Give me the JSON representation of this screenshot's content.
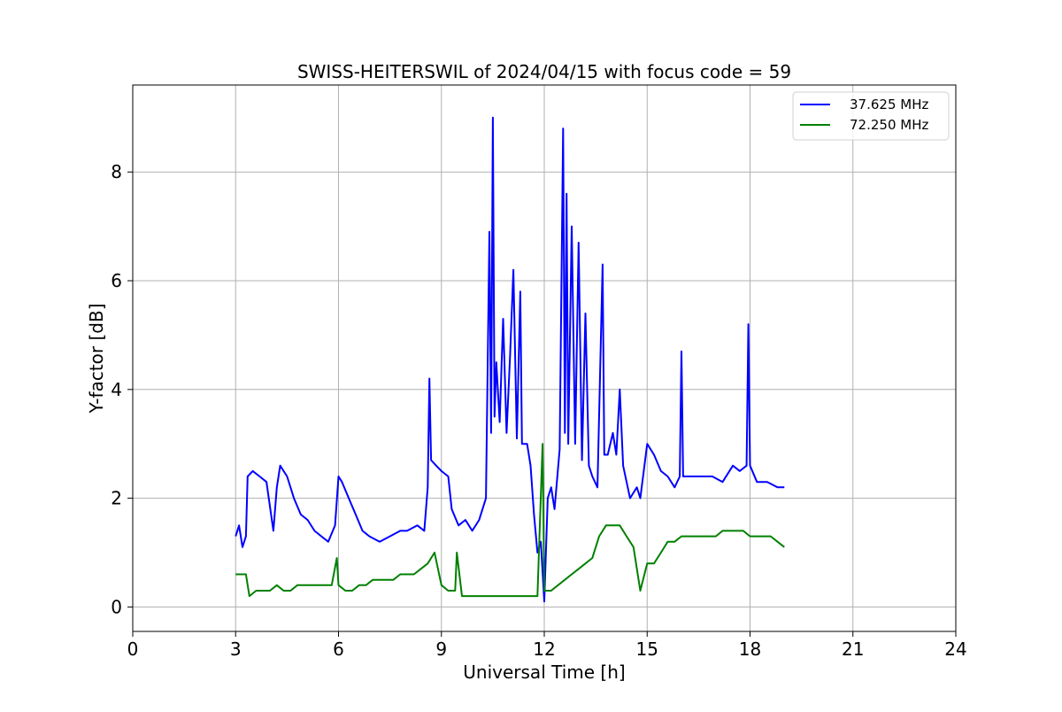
{
  "chart_data": {
    "type": "line",
    "title": "SWISS-HEITERSWIL of 2024/04/15 with focus code = 59",
    "xlabel": "Universal Time [h]",
    "ylabel": "Y-factor [dB]",
    "xlim": [
      0,
      24
    ],
    "ylim": [
      -0.45,
      9.6
    ],
    "xticks": [
      0,
      3,
      6,
      9,
      12,
      15,
      18,
      21,
      24
    ],
    "yticks": [
      0,
      2,
      4,
      6,
      8
    ],
    "xtick_labels": [
      "0",
      "3",
      "6",
      "9",
      "12",
      "15",
      "18",
      "21",
      "24"
    ],
    "ytick_labels": [
      "0",
      "2",
      "4",
      "6",
      "8"
    ],
    "grid": true,
    "legend_position": "top-right",
    "series": [
      {
        "name": "37.625 MHz",
        "color": "#0000ff",
        "points": [
          [
            3.0,
            1.3
          ],
          [
            3.1,
            1.5
          ],
          [
            3.2,
            1.1
          ],
          [
            3.3,
            1.3
          ],
          [
            3.35,
            2.4
          ],
          [
            3.5,
            2.5
          ],
          [
            3.7,
            2.4
          ],
          [
            3.9,
            2.3
          ],
          [
            4.1,
            1.4
          ],
          [
            4.2,
            2.2
          ],
          [
            4.3,
            2.6
          ],
          [
            4.5,
            2.4
          ],
          [
            4.7,
            2.0
          ],
          [
            4.9,
            1.7
          ],
          [
            5.1,
            1.6
          ],
          [
            5.3,
            1.4
          ],
          [
            5.5,
            1.3
          ],
          [
            5.7,
            1.2
          ],
          [
            5.9,
            1.5
          ],
          [
            6.0,
            2.4
          ],
          [
            6.1,
            2.3
          ],
          [
            6.3,
            2.0
          ],
          [
            6.5,
            1.7
          ],
          [
            6.7,
            1.4
          ],
          [
            6.9,
            1.3
          ],
          [
            7.2,
            1.2
          ],
          [
            7.5,
            1.3
          ],
          [
            7.8,
            1.4
          ],
          [
            8.0,
            1.4
          ],
          [
            8.3,
            1.5
          ],
          [
            8.5,
            1.4
          ],
          [
            8.6,
            2.2
          ],
          [
            8.65,
            4.2
          ],
          [
            8.7,
            2.7
          ],
          [
            8.85,
            2.6
          ],
          [
            9.0,
            2.5
          ],
          [
            9.2,
            2.4
          ],
          [
            9.3,
            1.8
          ],
          [
            9.5,
            1.5
          ],
          [
            9.7,
            1.6
          ],
          [
            9.9,
            1.4
          ],
          [
            10.1,
            1.6
          ],
          [
            10.3,
            2.0
          ],
          [
            10.4,
            6.9
          ],
          [
            10.45,
            3.2
          ],
          [
            10.5,
            9.0
          ],
          [
            10.55,
            3.5
          ],
          [
            10.6,
            4.5
          ],
          [
            10.7,
            3.4
          ],
          [
            10.8,
            5.3
          ],
          [
            10.9,
            3.2
          ],
          [
            11.0,
            4.6
          ],
          [
            11.1,
            6.2
          ],
          [
            11.2,
            3.1
          ],
          [
            11.3,
            5.8
          ],
          [
            11.35,
            3.0
          ],
          [
            11.5,
            3.0
          ],
          [
            11.6,
            2.6
          ],
          [
            11.7,
            1.7
          ],
          [
            11.8,
            1.0
          ],
          [
            11.9,
            1.2
          ],
          [
            12.0,
            0.1
          ],
          [
            12.1,
            2.0
          ],
          [
            12.2,
            2.2
          ],
          [
            12.3,
            1.8
          ],
          [
            12.45,
            2.9
          ],
          [
            12.55,
            8.8
          ],
          [
            12.6,
            3.2
          ],
          [
            12.65,
            7.6
          ],
          [
            12.7,
            3.0
          ],
          [
            12.8,
            7.0
          ],
          [
            12.9,
            3.0
          ],
          [
            13.0,
            6.7
          ],
          [
            13.1,
            2.7
          ],
          [
            13.2,
            5.4
          ],
          [
            13.3,
            2.6
          ],
          [
            13.4,
            2.4
          ],
          [
            13.55,
            2.2
          ],
          [
            13.7,
            6.3
          ],
          [
            13.75,
            2.8
          ],
          [
            13.85,
            2.8
          ],
          [
            14.0,
            3.2
          ],
          [
            14.1,
            2.8
          ],
          [
            14.2,
            4.0
          ],
          [
            14.3,
            2.6
          ],
          [
            14.5,
            2.0
          ],
          [
            14.7,
            2.2
          ],
          [
            14.8,
            2.0
          ],
          [
            15.0,
            3.0
          ],
          [
            15.2,
            2.8
          ],
          [
            15.4,
            2.5
          ],
          [
            15.6,
            2.4
          ],
          [
            15.8,
            2.2
          ],
          [
            15.95,
            2.4
          ],
          [
            16.0,
            4.7
          ],
          [
            16.05,
            2.4
          ],
          [
            16.3,
            2.4
          ],
          [
            16.6,
            2.4
          ],
          [
            16.9,
            2.4
          ],
          [
            17.2,
            2.3
          ],
          [
            17.5,
            2.6
          ],
          [
            17.7,
            2.5
          ],
          [
            17.9,
            2.6
          ],
          [
            17.95,
            5.2
          ],
          [
            18.0,
            2.6
          ],
          [
            18.2,
            2.3
          ],
          [
            18.5,
            2.3
          ],
          [
            18.8,
            2.2
          ],
          [
            19.0,
            2.2
          ]
        ]
      },
      {
        "name": "72.250 MHz",
        "color": "#008000",
        "points": [
          [
            3.0,
            0.6
          ],
          [
            3.2,
            0.6
          ],
          [
            3.3,
            0.6
          ],
          [
            3.4,
            0.2
          ],
          [
            3.6,
            0.3
          ],
          [
            3.8,
            0.3
          ],
          [
            4.0,
            0.3
          ],
          [
            4.2,
            0.4
          ],
          [
            4.4,
            0.3
          ],
          [
            4.6,
            0.3
          ],
          [
            4.8,
            0.4
          ],
          [
            5.0,
            0.4
          ],
          [
            5.2,
            0.4
          ],
          [
            5.4,
            0.4
          ],
          [
            5.6,
            0.4
          ],
          [
            5.8,
            0.4
          ],
          [
            5.95,
            0.9
          ],
          [
            6.0,
            0.4
          ],
          [
            6.2,
            0.3
          ],
          [
            6.4,
            0.3
          ],
          [
            6.6,
            0.4
          ],
          [
            6.8,
            0.4
          ],
          [
            7.0,
            0.5
          ],
          [
            7.2,
            0.5
          ],
          [
            7.4,
            0.5
          ],
          [
            7.6,
            0.5
          ],
          [
            7.8,
            0.6
          ],
          [
            8.0,
            0.6
          ],
          [
            8.2,
            0.6
          ],
          [
            8.4,
            0.7
          ],
          [
            8.6,
            0.8
          ],
          [
            8.8,
            1.0
          ],
          [
            9.0,
            0.4
          ],
          [
            9.2,
            0.3
          ],
          [
            9.4,
            0.3
          ],
          [
            9.45,
            1.0
          ],
          [
            9.6,
            0.2
          ],
          [
            9.8,
            0.2
          ],
          [
            10.0,
            0.2
          ],
          [
            10.2,
            0.2
          ],
          [
            10.4,
            0.2
          ],
          [
            10.6,
            0.2
          ],
          [
            10.8,
            0.2
          ],
          [
            11.0,
            0.2
          ],
          [
            11.2,
            0.2
          ],
          [
            11.4,
            0.2
          ],
          [
            11.6,
            0.2
          ],
          [
            11.8,
            0.2
          ],
          [
            11.95,
            3.0
          ],
          [
            12.0,
            0.3
          ],
          [
            12.2,
            0.3
          ],
          [
            12.4,
            0.4
          ],
          [
            12.6,
            0.5
          ],
          [
            12.8,
            0.6
          ],
          [
            13.0,
            0.7
          ],
          [
            13.2,
            0.8
          ],
          [
            13.4,
            0.9
          ],
          [
            13.6,
            1.3
          ],
          [
            13.8,
            1.5
          ],
          [
            14.0,
            1.5
          ],
          [
            14.2,
            1.5
          ],
          [
            14.4,
            1.3
          ],
          [
            14.6,
            1.1
          ],
          [
            14.8,
            0.3
          ],
          [
            15.0,
            0.8
          ],
          [
            15.2,
            0.8
          ],
          [
            15.4,
            1.0
          ],
          [
            15.6,
            1.2
          ],
          [
            15.8,
            1.2
          ],
          [
            16.0,
            1.3
          ],
          [
            16.2,
            1.3
          ],
          [
            16.4,
            1.3
          ],
          [
            16.6,
            1.3
          ],
          [
            16.8,
            1.3
          ],
          [
            17.0,
            1.3
          ],
          [
            17.2,
            1.4
          ],
          [
            17.4,
            1.4
          ],
          [
            17.6,
            1.4
          ],
          [
            17.8,
            1.4
          ],
          [
            18.0,
            1.3
          ],
          [
            18.2,
            1.3
          ],
          [
            18.4,
            1.3
          ],
          [
            18.6,
            1.3
          ],
          [
            18.8,
            1.2
          ],
          [
            19.0,
            1.1
          ]
        ]
      }
    ]
  }
}
